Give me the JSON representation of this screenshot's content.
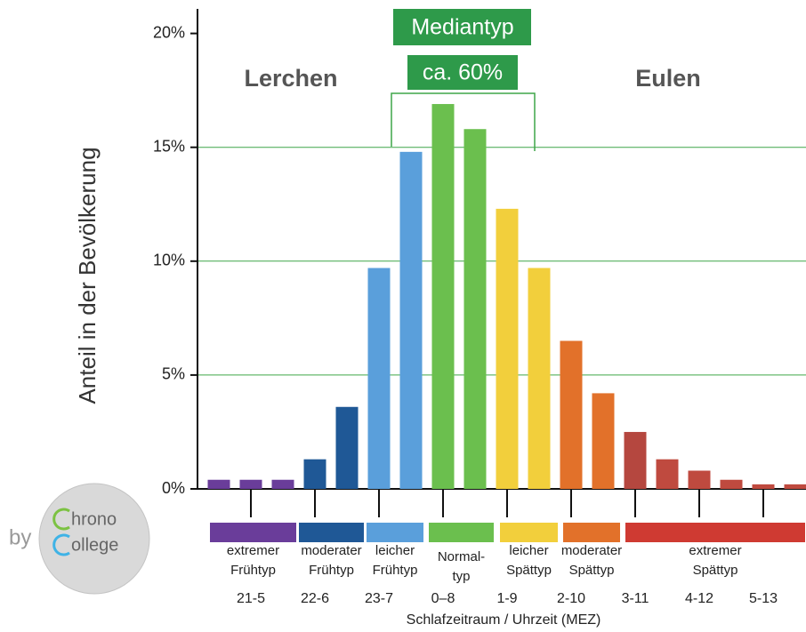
{
  "chart_data": {
    "type": "bar",
    "y_axis_label": "Anteil in der Bevölkerung",
    "x_axis_label": "Schlafzeitraum / Uhrzeit (MEZ)",
    "categories": [
      null,
      "21-5",
      null,
      "22-6",
      null,
      "23-7",
      null,
      "0–8",
      null,
      "1-9",
      null,
      "2-10",
      null,
      "3-11",
      null,
      "4-12",
      null,
      "5-13",
      null
    ],
    "values": [
      0.4,
      0.4,
      0.4,
      1.3,
      3.6,
      9.7,
      14.8,
      16.9,
      15.8,
      12.3,
      9.7,
      6.5,
      4.2,
      2.5,
      1.3,
      0.8,
      0.4,
      0.2,
      0.2
    ],
    "colors": [
      "#6a3d9a",
      "#6a3d9a",
      "#6a3d9a",
      "#1f5896",
      "#1f5896",
      "#5a9fdb",
      "#5a9fdb",
      "#6bbf4e",
      "#6bbf4e",
      "#f2cf3c",
      "#f2cf3c",
      "#e2712a",
      "#e2712a",
      "#b5473f",
      "#bf4a3f",
      "#bf4a3f",
      "#bf4a3f",
      "#bf4a3f",
      "#bf4a3f"
    ],
    "ylim": [
      0,
      21
    ],
    "yticks": [
      {
        "value": 0,
        "label": "0%"
      },
      {
        "value": 5,
        "label": "5%"
      },
      {
        "value": 10,
        "label": "10%"
      },
      {
        "value": 15,
        "label": "15%"
      },
      {
        "value": 20,
        "label": "20%"
      }
    ],
    "grid": true,
    "grid_color": "#3fa648",
    "groups": [
      {
        "lines": [
          "extremer",
          "Frühtyp"
        ],
        "color": "#6a3d9a"
      },
      {
        "lines": [
          "moderater",
          "Frühtyp"
        ],
        "color": "#1f5896"
      },
      {
        "lines": [
          "leicher",
          "Frühtyp"
        ],
        "color": "#5a9fdb"
      },
      {
        "lines": [
          "Normal-",
          "typ"
        ],
        "color": "#6bbf4e"
      },
      {
        "lines": [
          "leicher",
          "Spättyp"
        ],
        "color": "#f2cf3c"
      },
      {
        "lines": [
          "moderater",
          "Spättyp"
        ],
        "color": "#e2712a"
      },
      {
        "lines": [
          "extremer",
          "Spättyp"
        ],
        "color": "#cf3a32"
      }
    ],
    "annotations": {
      "left": "Lerchen",
      "right": "Eulen",
      "median_title": "Mediantyp",
      "median_share": "ca. 60%"
    }
  },
  "logo": {
    "by": "by",
    "line1": "hrono",
    "line2": "ollege"
  }
}
